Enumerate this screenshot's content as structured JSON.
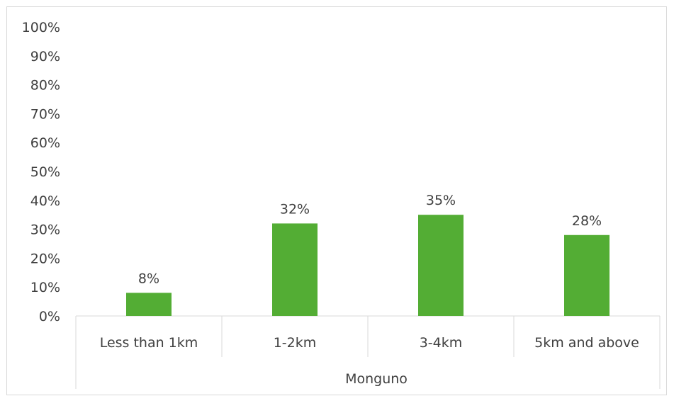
{
  "chart_data": {
    "type": "bar",
    "title": "",
    "xlabel": "",
    "ylabel": "",
    "group_label": "Monguno",
    "categories": [
      "Less than 1km",
      "1-2km",
      "3-4km",
      "5km and above"
    ],
    "values": [
      8,
      32,
      35,
      28
    ],
    "value_labels": [
      "8%",
      "32%",
      "35%",
      "28%"
    ],
    "ylim": [
      0,
      100
    ],
    "y_ticks": [
      "0%",
      "10%",
      "20%",
      "30%",
      "40%",
      "50%",
      "60%",
      "70%",
      "80%",
      "90%",
      "100%"
    ],
    "grid": false,
    "legend": "none",
    "bar_color": "#53ad34",
    "axis_color": "#d9d9d9"
  }
}
